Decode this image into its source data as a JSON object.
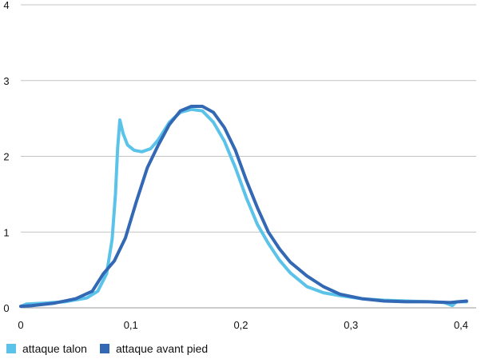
{
  "chart_data": {
    "type": "line",
    "title": "",
    "xlabel": "",
    "ylabel": "",
    "xlim": [
      0,
      0.41
    ],
    "ylim": [
      0,
      4
    ],
    "x_ticks": [
      0,
      0.1,
      0.2,
      0.3,
      0.4
    ],
    "x_tick_labels": [
      "0",
      "0,1",
      "0,2",
      "0,3",
      "0,4"
    ],
    "y_ticks": [
      0,
      1,
      2,
      3,
      4
    ],
    "y_tick_labels": [
      "0",
      "1",
      "2",
      "3",
      "4"
    ],
    "grid": true,
    "legend_position": "bottom-left",
    "series": [
      {
        "name": "attaque talon",
        "color": "#5bc3ea",
        "points": [
          [
            0.0,
            0.02
          ],
          [
            0.005,
            0.05
          ],
          [
            0.02,
            0.06
          ],
          [
            0.04,
            0.08
          ],
          [
            0.06,
            0.13
          ],
          [
            0.07,
            0.22
          ],
          [
            0.078,
            0.45
          ],
          [
            0.083,
            0.9
          ],
          [
            0.086,
            1.5
          ],
          [
            0.088,
            2.1
          ],
          [
            0.09,
            2.48
          ],
          [
            0.093,
            2.3
          ],
          [
            0.097,
            2.15
          ],
          [
            0.103,
            2.08
          ],
          [
            0.11,
            2.06
          ],
          [
            0.118,
            2.1
          ],
          [
            0.125,
            2.22
          ],
          [
            0.135,
            2.45
          ],
          [
            0.145,
            2.58
          ],
          [
            0.155,
            2.62
          ],
          [
            0.165,
            2.6
          ],
          [
            0.175,
            2.45
          ],
          [
            0.185,
            2.2
          ],
          [
            0.195,
            1.85
          ],
          [
            0.205,
            1.45
          ],
          [
            0.215,
            1.1
          ],
          [
            0.225,
            0.85
          ],
          [
            0.235,
            0.63
          ],
          [
            0.245,
            0.46
          ],
          [
            0.26,
            0.28
          ],
          [
            0.275,
            0.2
          ],
          [
            0.29,
            0.16
          ],
          [
            0.31,
            0.12
          ],
          [
            0.33,
            0.1
          ],
          [
            0.35,
            0.09
          ],
          [
            0.37,
            0.08
          ],
          [
            0.385,
            0.07
          ],
          [
            0.392,
            0.03
          ],
          [
            0.396,
            0.08
          ],
          [
            0.405,
            0.08
          ]
        ]
      },
      {
        "name": "attaque avant pied",
        "color": "#3268b4",
        "points": [
          [
            0.0,
            0.02
          ],
          [
            0.01,
            0.03
          ],
          [
            0.03,
            0.06
          ],
          [
            0.05,
            0.12
          ],
          [
            0.065,
            0.22
          ],
          [
            0.075,
            0.45
          ],
          [
            0.085,
            0.62
          ],
          [
            0.095,
            0.92
          ],
          [
            0.105,
            1.4
          ],
          [
            0.115,
            1.85
          ],
          [
            0.125,
            2.15
          ],
          [
            0.135,
            2.42
          ],
          [
            0.145,
            2.6
          ],
          [
            0.155,
            2.66
          ],
          [
            0.165,
            2.66
          ],
          [
            0.175,
            2.58
          ],
          [
            0.185,
            2.38
          ],
          [
            0.195,
            2.08
          ],
          [
            0.205,
            1.68
          ],
          [
            0.215,
            1.32
          ],
          [
            0.225,
            1.0
          ],
          [
            0.235,
            0.78
          ],
          [
            0.245,
            0.6
          ],
          [
            0.26,
            0.42
          ],
          [
            0.275,
            0.28
          ],
          [
            0.29,
            0.18
          ],
          [
            0.31,
            0.12
          ],
          [
            0.33,
            0.09
          ],
          [
            0.35,
            0.08
          ],
          [
            0.37,
            0.08
          ],
          [
            0.39,
            0.07
          ],
          [
            0.405,
            0.09
          ]
        ]
      }
    ]
  }
}
